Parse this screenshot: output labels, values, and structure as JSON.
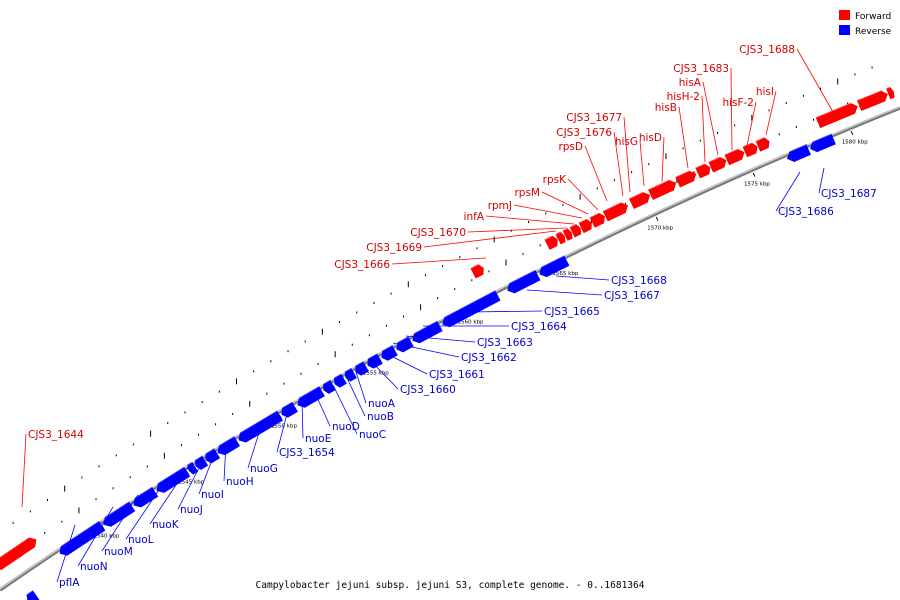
{
  "legend": {
    "forward_label": "Forward",
    "reverse_label": "Reverse",
    "forward_color": "#ff0000",
    "reverse_color": "#0000ff"
  },
  "caption": "Campylobacter jejuni subsp. jejuni S3, complete genome. - 0..1681364",
  "ruler_labels": [
    "1540 kbp",
    "1545 kbp",
    "1550 kbp",
    "1555 kbp",
    "1560 kbp",
    "1565 kbp",
    "1570 kbp",
    "1575 kbp",
    "1580 kbp"
  ],
  "forward_genes": [
    "CJS3_1644",
    "CJS3_1666",
    "CJS3_1669",
    "CJS3_1670",
    "infA",
    "rpmJ",
    "rpsM",
    "rpsK",
    "rpsD",
    "CJS3_1676",
    "CJS3_1677",
    "hisG",
    "hisD",
    "hisB",
    "hisH-2",
    "hisA",
    "CJS3_1683",
    "hisF-2",
    "hisI",
    "CJS3_1688"
  ],
  "reverse_genes": [
    "pflA",
    "nuoN",
    "nuoM",
    "nuoL",
    "nuoK",
    "nuoJ",
    "nuoI",
    "nuoH",
    "nuoG",
    "CJS3_1654",
    "nuoE",
    "nuoD",
    "nuoC",
    "nuoB",
    "nuoA",
    "CJS3_1660",
    "CJS3_1661",
    "CJS3_1662",
    "CJS3_1663",
    "CJS3_1664",
    "CJS3_1665",
    "CJS3_1667",
    "CJS3_1668",
    "CJS3_1686",
    "CJS3_1687"
  ]
}
